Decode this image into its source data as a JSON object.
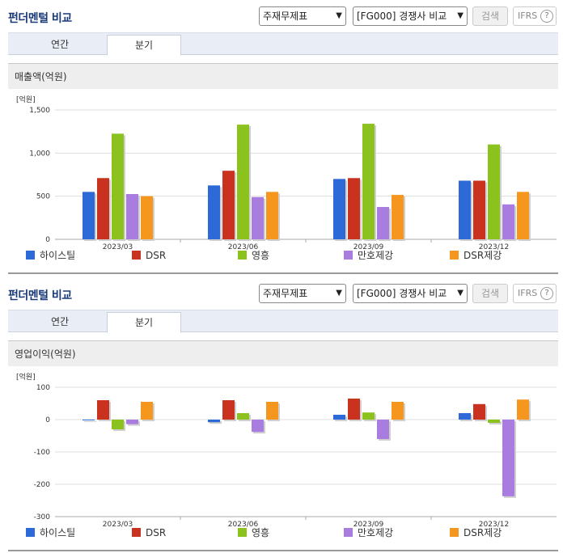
{
  "sections": [
    {
      "title": "펀더멘털 비교",
      "select1": "주재무제표",
      "select2": "[FG000] 경쟁사 비교",
      "search_label": "검색",
      "ifrs_label": "IFRS",
      "ifrs_help": "?",
      "tabs": [
        {
          "label": "연간"
        },
        {
          "label": "분기"
        }
      ],
      "active_tab": "분기",
      "subtitle": "매출액(억원)"
    },
    {
      "title": "펀더멘털 비교",
      "select1": "주재무제표",
      "select2": "[FG000] 경쟁사 비교",
      "search_label": "검색",
      "ifrs_label": "IFRS",
      "ifrs_help": "?",
      "tabs": [
        {
          "label": "연간"
        },
        {
          "label": "분기"
        }
      ],
      "active_tab": "분기",
      "subtitle": "영업이익(억원)"
    }
  ],
  "chart_data": [
    {
      "type": "bar",
      "unit_label": "[억원]",
      "categories": [
        "2023/03",
        "2023/06",
        "2023/09",
        "2023/12"
      ],
      "ylim": [
        0,
        1500
      ],
      "yticks": [
        0,
        500,
        1000,
        1500
      ],
      "ytick_labels": [
        "0",
        "500",
        "1,000",
        "1,500"
      ],
      "grid": true,
      "legend_position": "bottom",
      "series": [
        {
          "name": "하이스틸",
          "color": "#2d6ad8",
          "values": [
            550,
            625,
            700,
            680
          ]
        },
        {
          "name": "DSR",
          "color": "#c8321e",
          "values": [
            710,
            795,
            710,
            680
          ]
        },
        {
          "name": "영흥",
          "color": "#8cc21e",
          "values": [
            1225,
            1330,
            1340,
            1100
          ]
        },
        {
          "name": "만호제강",
          "color": "#a97de0",
          "values": [
            525,
            490,
            375,
            405
          ]
        },
        {
          "name": "DSR제강",
          "color": "#f5961e",
          "values": [
            500,
            550,
            515,
            550
          ]
        }
      ]
    },
    {
      "type": "bar",
      "unit_label": "[억원]",
      "categories": [
        "2023/03",
        "2023/06",
        "2023/09",
        "2023/12"
      ],
      "ylim": [
        -300,
        100
      ],
      "yticks": [
        -300,
        -200,
        -100,
        0,
        100
      ],
      "ytick_labels": [
        "-300",
        "-200",
        "-100",
        "0",
        "100"
      ],
      "grid": true,
      "legend_position": "bottom",
      "series": [
        {
          "name": "하이스틸",
          "color": "#2d6ad8",
          "values": [
            0,
            -8,
            15,
            20
          ]
        },
        {
          "name": "DSR",
          "color": "#c8321e",
          "values": [
            60,
            60,
            65,
            48
          ]
        },
        {
          "name": "영흥",
          "color": "#8cc21e",
          "values": [
            -30,
            20,
            22,
            -10
          ]
        },
        {
          "name": "만호제강",
          "color": "#a97de0",
          "values": [
            -14,
            -38,
            -60,
            -237
          ]
        },
        {
          "name": "DSR제강",
          "color": "#f5961e",
          "values": [
            55,
            55,
            55,
            62
          ]
        }
      ]
    }
  ]
}
